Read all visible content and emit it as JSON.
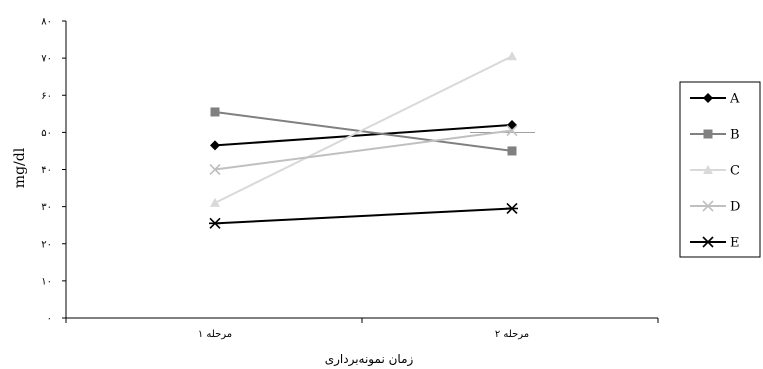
{
  "chart_data": {
    "type": "line",
    "ylabel": "mg/dl",
    "xlabel": "زمان نمونه‌برداری",
    "ylim": [
      0,
      80
    ],
    "yticks": [
      0,
      10,
      20,
      30,
      40,
      50,
      60,
      70,
      80
    ],
    "ytick_labels": [
      "۰",
      "۱۰",
      "۲۰",
      "۳۰",
      "۴۰",
      "۵۰",
      "۶۰",
      "۷۰",
      "۸۰"
    ],
    "categories": [
      "مرحله ۱",
      "مرحله ۲"
    ],
    "series": [
      {
        "name": "A",
        "values": [
          46.5,
          52
        ],
        "color": "#000000",
        "marker": "diamond"
      },
      {
        "name": "B",
        "values": [
          55.5,
          45
        ],
        "color": "#808080",
        "marker": "square"
      },
      {
        "name": "C",
        "values": [
          31,
          70.5
        ],
        "color": "#d9d9d9",
        "marker": "triangle"
      },
      {
        "name": "D",
        "values": [
          40,
          50.5
        ],
        "color": "#c0c0c0",
        "marker": "x"
      },
      {
        "name": "E",
        "values": [
          25.5,
          29.5
        ],
        "color": "#000000",
        "marker": "star"
      }
    ],
    "legend_position": "right",
    "grid": false
  }
}
